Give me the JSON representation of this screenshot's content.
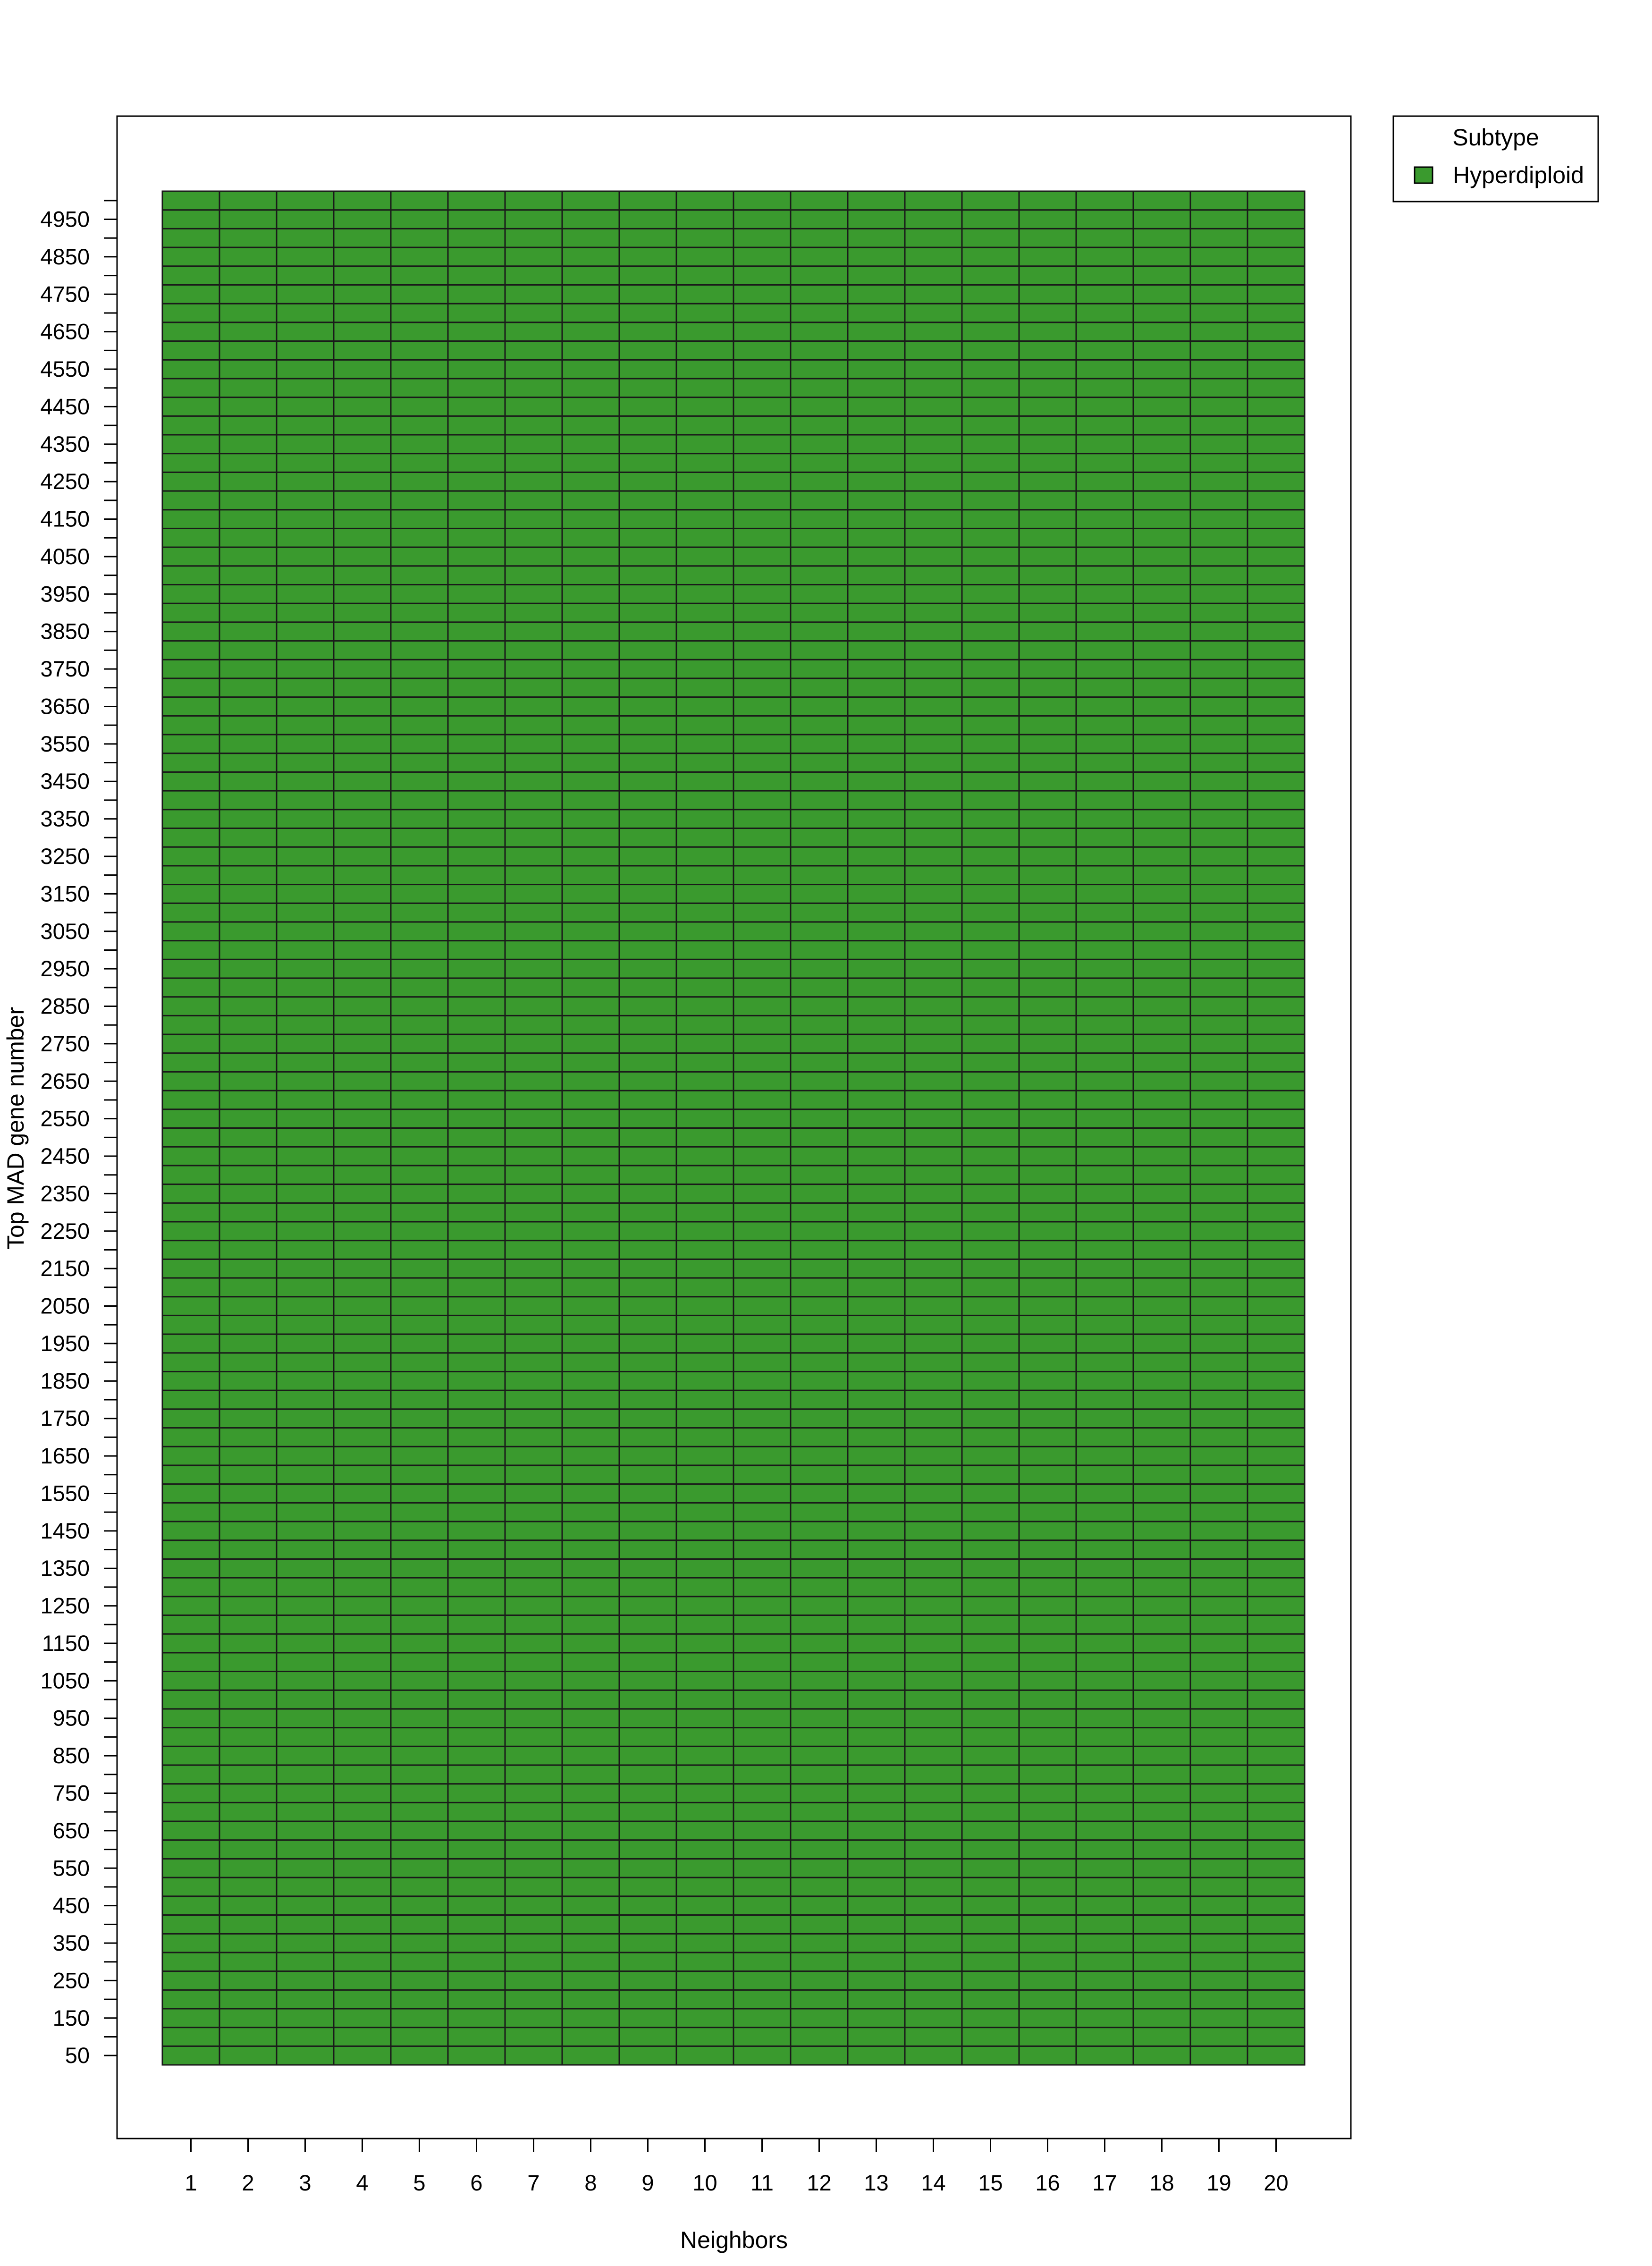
{
  "chart_data": {
    "type": "heatmap",
    "title": "",
    "xlabel": "Neighbors",
    "ylabel": "Top MAD gene number",
    "x": [
      1,
      2,
      3,
      4,
      5,
      6,
      7,
      8,
      9,
      10,
      11,
      12,
      13,
      14,
      15,
      16,
      17,
      18,
      19,
      20
    ],
    "y_range": [
      50,
      5000
    ],
    "y_step": 50,
    "y_tick_labels": [
      50,
      150,
      250,
      350,
      450,
      550,
      650,
      750,
      850,
      950,
      1050,
      1150,
      1250,
      1350,
      1450,
      1550,
      1650,
      1750,
      1850,
      1950,
      2050,
      2150,
      2250,
      2350,
      2450,
      2550,
      2650,
      2750,
      2850,
      2950,
      3050,
      3150,
      3250,
      3350,
      3450,
      3550,
      3650,
      3750,
      3850,
      3950,
      4050,
      4150,
      4250,
      4350,
      4450,
      4550,
      4650,
      4750,
      4850,
      4950
    ],
    "cell_value": "Hyperdiploid",
    "legend": {
      "title": "Subtype",
      "position": "top-right",
      "entries": [
        {
          "label": "Hyperdiploid",
          "color": "#3a9a2e"
        }
      ]
    },
    "grid": true
  },
  "colors": {
    "Hyperdiploid": "#3a9a2e",
    "cell_border": "#1a1a1a",
    "axis": "#000000"
  }
}
